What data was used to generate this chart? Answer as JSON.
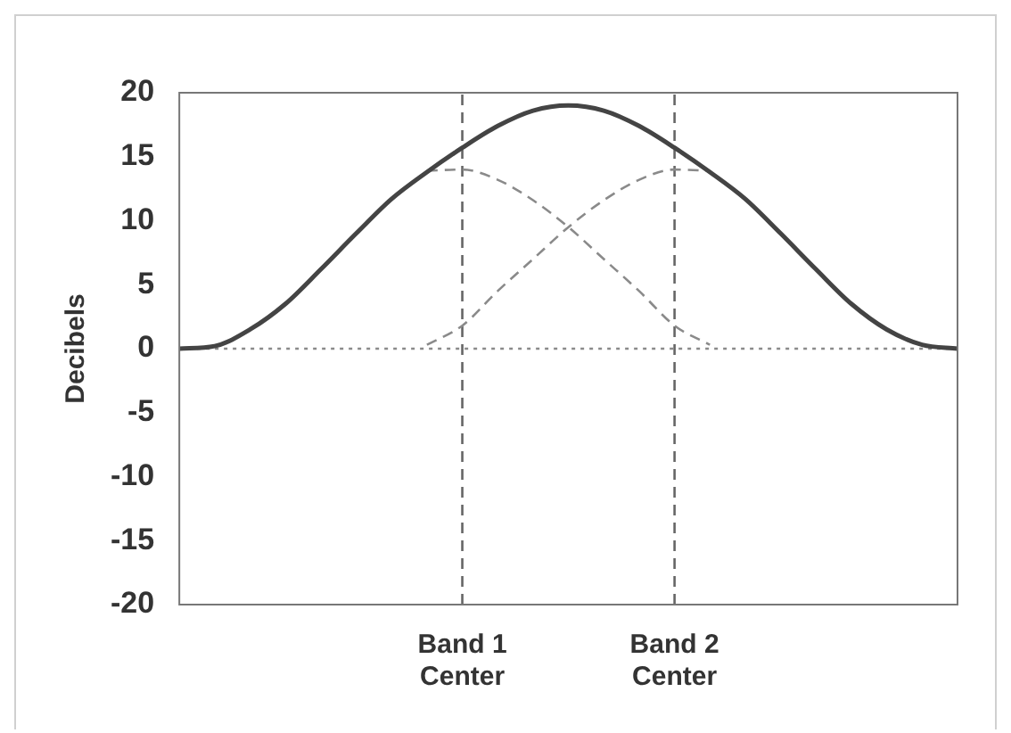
{
  "chart_data": {
    "type": "line",
    "ylabel": "Decibels",
    "categories": [
      null,
      null,
      null,
      null,
      null,
      null,
      null,
      null,
      "Band 1 Center",
      null,
      null,
      null,
      null,
      null,
      "Band 2 Center",
      null,
      null,
      null,
      null,
      null,
      null,
      null,
      null
    ],
    "series": [
      {
        "color": "#444444",
        "line_style": "solid",
        "values": [
          0,
          0.2,
          1.5,
          3.5,
          6.2,
          9,
          11.7,
          13.8,
          15.7,
          17.4,
          18.6,
          19,
          18.6,
          17.4,
          15.7,
          13.8,
          11.7,
          9,
          6.2,
          3.5,
          1.5,
          0.3,
          0
        ]
      },
      {
        "color": "#8a8a8a",
        "line_style": "dashed",
        "values": [
          null,
          null,
          null,
          null,
          null,
          null,
          null,
          13.9,
          14,
          13.2,
          11.6,
          9.5,
          7,
          4.5,
          1.8,
          0.3,
          null,
          null,
          null,
          null,
          null,
          null,
          null
        ]
      },
      {
        "color": "#8a8a8a",
        "line_style": "dashed",
        "values": [
          null,
          null,
          null,
          null,
          null,
          null,
          null,
          0.3,
          1.8,
          4.5,
          7,
          9.5,
          11.6,
          13.2,
          14,
          13.9,
          null,
          null,
          null,
          null,
          null,
          null,
          null
        ]
      }
    ],
    "ylim": [
      -20,
      20
    ],
    "yticks": [
      -20,
      -15,
      -10,
      -5,
      0,
      5,
      10,
      15,
      20
    ],
    "ref_lines": [
      {
        "axis": "y",
        "value": 0,
        "color": "#8a8a8a",
        "line_style": "dotted"
      },
      {
        "axis": "x",
        "value": "Band 1 Center",
        "color": "#666666",
        "line_style": "dashed"
      },
      {
        "axis": "x",
        "value": "Band 2 Center",
        "color": "#666666",
        "line_style": "dashed"
      }
    ],
    "grid": false,
    "legend": false,
    "marker": "none"
  }
}
